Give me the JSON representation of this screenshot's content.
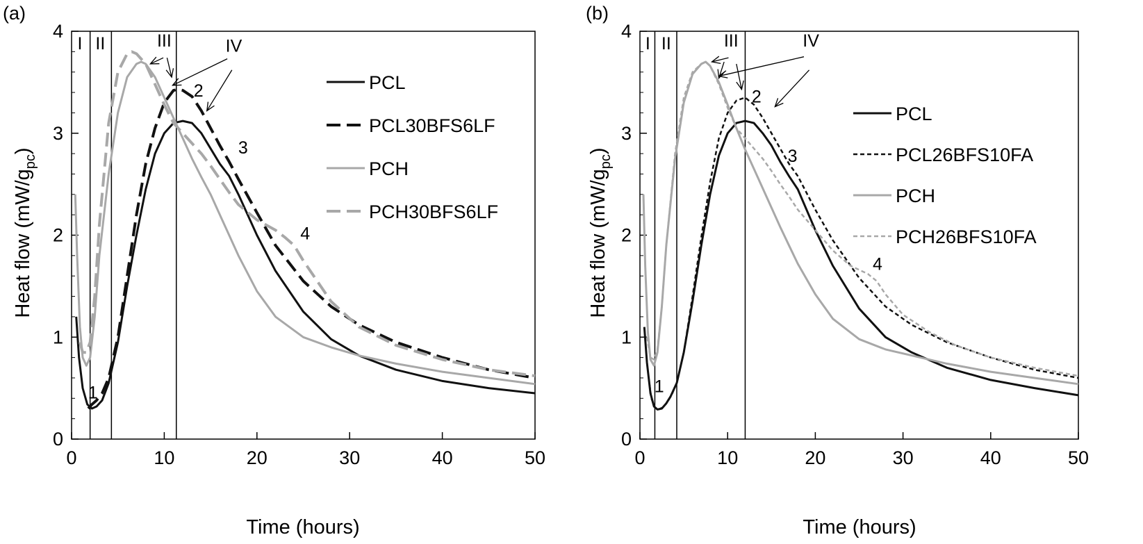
{
  "chart_data": [
    {
      "type": "line",
      "panel_label": "(a)",
      "xlabel": "Time (hours)",
      "ylabel": "Heat flow (mW/g",
      "ylabel_sub": "pc",
      "ylabel_close": ")",
      "xlim": [
        0,
        50
      ],
      "ylim": [
        0,
        4
      ],
      "xticks": [
        "0",
        "10",
        "20",
        "30",
        "40",
        "50"
      ],
      "yticks": [
        "0",
        "1",
        "2",
        "3",
        "4"
      ],
      "grid": false,
      "legend_position": "right",
      "region_lines_x": [
        2.0,
        4.3,
        11.3
      ],
      "region_labels": [
        {
          "text": "I",
          "x": 0.9
        },
        {
          "text": "II",
          "x": 3.1
        }
      ],
      "big_labels": [
        {
          "text": "III",
          "x": 10.0,
          "y": 3.85
        },
        {
          "text": "IV",
          "x": 17.5,
          "y": 3.8
        }
      ],
      "arrows": [
        {
          "from": [
            9.9,
            3.74
          ],
          "to": [
            8.5,
            3.68
          ]
        },
        {
          "from": [
            10.3,
            3.74
          ],
          "to": [
            10.8,
            3.55
          ]
        },
        {
          "from": [
            16.8,
            3.73
          ],
          "to": [
            10.9,
            3.47
          ]
        },
        {
          "from": [
            17.3,
            3.62
          ],
          "to": [
            14.6,
            3.22
          ]
        }
      ],
      "point_labels": [
        {
          "text": "1",
          "x": 2.3,
          "y": 0.4
        },
        {
          "text": "2",
          "x": 13.7,
          "y": 3.36
        },
        {
          "text": "3",
          "x": 18.5,
          "y": 2.8
        },
        {
          "text": "4",
          "x": 25.2,
          "y": 1.96
        }
      ],
      "series": [
        {
          "name": "PCL",
          "color": "#111111",
          "style": "solid",
          "x": [
            0.5,
            0.8,
            1.2,
            1.7,
            2.2,
            2.7,
            3.3,
            4.0,
            5.0,
            6.0,
            7.0,
            8.0,
            9.0,
            10.0,
            11.0,
            12.0,
            13.0,
            14.0,
            15.0,
            16.0,
            17.0,
            18.0,
            20.0,
            22.0,
            25.0,
            28.0,
            31.0,
            35.0,
            40.0,
            45.0,
            50.0
          ],
          "y": [
            1.2,
            0.8,
            0.5,
            0.34,
            0.3,
            0.32,
            0.38,
            0.55,
            0.95,
            1.5,
            2.0,
            2.45,
            2.8,
            3.0,
            3.1,
            3.12,
            3.1,
            3.0,
            2.85,
            2.7,
            2.58,
            2.4,
            2.0,
            1.65,
            1.25,
            0.98,
            0.82,
            0.68,
            0.57,
            0.5,
            0.45
          ]
        },
        {
          "name": "PCL30BFS6LF",
          "color": "#111111",
          "style": "dashed",
          "x": [
            1.8,
            2.2,
            2.7,
            3.3,
            4.0,
            5.0,
            6.0,
            7.0,
            8.0,
            9.0,
            10.0,
            11.0,
            11.5,
            12.0,
            13.0,
            14.0,
            15.0,
            16.0,
            17.0,
            18.0,
            20.0,
            22.0,
            25.0,
            28.0,
            31.0,
            35.0,
            40.0,
            45.0,
            50.0
          ],
          "y": [
            0.3,
            0.34,
            0.38,
            0.45,
            0.6,
            1.0,
            1.6,
            2.2,
            2.7,
            3.05,
            3.3,
            3.42,
            3.43,
            3.42,
            3.36,
            3.22,
            3.05,
            2.88,
            2.72,
            2.55,
            2.22,
            1.9,
            1.55,
            1.3,
            1.12,
            0.95,
            0.8,
            0.68,
            0.6
          ]
        },
        {
          "name": "PCH",
          "color": "#a8a8a8",
          "style": "solid",
          "x": [
            0.4,
            0.6,
            0.9,
            1.2,
            1.6,
            2.0,
            2.5,
            3.0,
            4.0,
            5.0,
            6.0,
            7.0,
            7.5,
            8.0,
            9.0,
            10.0,
            11.0,
            12.0,
            13.0,
            14.0,
            15.0,
            16.0,
            17.0,
            18.0,
            20.0,
            22.0,
            25.0,
            28.0,
            31.0,
            35.0,
            40.0,
            45.0,
            50.0
          ],
          "y": [
            2.4,
            1.8,
            1.1,
            0.8,
            0.72,
            0.8,
            1.2,
            1.8,
            2.6,
            3.2,
            3.55,
            3.68,
            3.7,
            3.68,
            3.55,
            3.35,
            3.15,
            2.95,
            2.75,
            2.57,
            2.4,
            2.2,
            2.0,
            1.8,
            1.45,
            1.2,
            1.0,
            0.9,
            0.82,
            0.74,
            0.66,
            0.6,
            0.54
          ]
        },
        {
          "name": "PCH30BFS6LF",
          "color": "#a8a8a8",
          "style": "dashed",
          "x": [
            0.9,
            1.2,
            1.6,
            2.0,
            2.5,
            3.0,
            4.0,
            5.0,
            6.0,
            6.5,
            7.0,
            8.0,
            9.0,
            10.0,
            11.0,
            12.0,
            13.0,
            14.0,
            15.0,
            16.0,
            17.0,
            18.0,
            20.0,
            22.0,
            23.0,
            24.0,
            25.0,
            28.0,
            31.0,
            35.0,
            40.0,
            45.0,
            50.0
          ],
          "y": [
            0.95,
            0.85,
            0.85,
            0.95,
            1.4,
            2.1,
            3.1,
            3.6,
            3.78,
            3.8,
            3.78,
            3.68,
            3.48,
            3.28,
            3.1,
            3.0,
            2.9,
            2.8,
            2.68,
            2.55,
            2.42,
            2.3,
            2.15,
            2.05,
            1.98,
            1.9,
            1.75,
            1.35,
            1.1,
            0.92,
            0.78,
            0.68,
            0.62
          ]
        }
      ]
    },
    {
      "type": "line",
      "panel_label": "(b)",
      "xlabel": "Time (hours)",
      "ylabel": "Heat flow (mW/g",
      "ylabel_sub": "pc",
      "ylabel_close": ")",
      "xlim": [
        0,
        50
      ],
      "ylim": [
        0,
        4
      ],
      "xticks": [
        "0",
        "10",
        "20",
        "30",
        "40",
        "50"
      ],
      "yticks": [
        "0",
        "1",
        "2",
        "3",
        "4"
      ],
      "grid": false,
      "legend_position": "right",
      "region_lines_x": [
        1.7,
        4.2,
        12.0
      ],
      "region_labels": [
        {
          "text": "I",
          "x": 0.9
        },
        {
          "text": "II",
          "x": 3.0
        }
      ],
      "big_labels": [
        {
          "text": "III",
          "x": 10.4,
          "y": 3.85
        },
        {
          "text": "IV",
          "x": 19.5,
          "y": 3.85
        }
      ],
      "arrows": [
        {
          "from": [
            10.1,
            3.74
          ],
          "to": [
            8.2,
            3.7
          ]
        },
        {
          "from": [
            9.6,
            3.7
          ],
          "to": [
            9.0,
            3.54
          ]
        },
        {
          "from": [
            11.0,
            3.68
          ],
          "to": [
            11.6,
            3.43
          ]
        },
        {
          "from": [
            18.7,
            3.75
          ],
          "to": [
            9.0,
            3.56
          ]
        },
        {
          "from": [
            19.3,
            3.62
          ],
          "to": [
            15.4,
            3.26
          ]
        }
      ],
      "point_labels": [
        {
          "text": "1",
          "x": 2.2,
          "y": 0.46
        },
        {
          "text": "2",
          "x": 13.3,
          "y": 3.3
        },
        {
          "text": "3",
          "x": 17.4,
          "y": 2.72
        },
        {
          "text": "4",
          "x": 27.1,
          "y": 1.66
        }
      ],
      "series": [
        {
          "name": "PCL",
          "color": "#111111",
          "style": "solid",
          "x": [
            0.5,
            0.8,
            1.2,
            1.6,
            2.0,
            2.5,
            3.0,
            3.5,
            4.2,
            5.0,
            6.0,
            7.0,
            8.0,
            9.0,
            10.0,
            11.0,
            12.0,
            13.0,
            14.0,
            15.0,
            16.0,
            17.0,
            18.0,
            20.0,
            22.0,
            25.0,
            28.0,
            31.0,
            35.0,
            40.0,
            45.0,
            50.0
          ],
          "y": [
            1.1,
            0.75,
            0.45,
            0.32,
            0.29,
            0.3,
            0.35,
            0.42,
            0.55,
            0.85,
            1.35,
            1.9,
            2.4,
            2.78,
            3.0,
            3.1,
            3.12,
            3.1,
            3.0,
            2.88,
            2.72,
            2.58,
            2.45,
            2.05,
            1.7,
            1.28,
            1.0,
            0.85,
            0.7,
            0.58,
            0.5,
            0.43
          ]
        },
        {
          "name": "PCL26BFS10FA",
          "color": "#111111",
          "style": "dotted",
          "x": [
            1.0,
            1.3,
            1.7,
            2.1,
            2.6,
            3.1,
            3.6,
            4.2,
            5.0,
            6.0,
            7.0,
            8.0,
            9.0,
            10.0,
            11.0,
            12.0,
            13.0,
            14.0,
            15.0,
            16.0,
            17.0,
            18.0,
            20.0,
            22.0,
            25.0,
            28.0,
            31.0,
            35.0,
            40.0,
            45.0,
            50.0
          ],
          "y": [
            0.6,
            0.4,
            0.31,
            0.29,
            0.31,
            0.36,
            0.43,
            0.55,
            0.85,
            1.4,
            1.98,
            2.52,
            2.95,
            3.2,
            3.32,
            3.35,
            3.28,
            3.15,
            3.0,
            2.85,
            2.7,
            2.58,
            2.25,
            1.95,
            1.58,
            1.3,
            1.12,
            0.95,
            0.8,
            0.68,
            0.6
          ]
        },
        {
          "name": "PCH",
          "color": "#a8a8a8",
          "style": "solid",
          "x": [
            0.4,
            0.6,
            0.9,
            1.2,
            1.6,
            2.0,
            2.5,
            3.0,
            4.0,
            5.0,
            6.0,
            7.0,
            7.5,
            8.0,
            9.0,
            10.0,
            11.0,
            12.0,
            13.0,
            14.0,
            15.0,
            16.0,
            17.0,
            18.0,
            20.0,
            22.0,
            25.0,
            28.0,
            31.0,
            35.0,
            40.0,
            45.0,
            50.0
          ],
          "y": [
            2.4,
            1.7,
            1.05,
            0.78,
            0.72,
            0.85,
            1.3,
            1.9,
            2.75,
            3.3,
            3.58,
            3.68,
            3.7,
            3.66,
            3.5,
            3.28,
            3.05,
            2.84,
            2.65,
            2.46,
            2.27,
            2.08,
            1.9,
            1.72,
            1.42,
            1.18,
            0.98,
            0.88,
            0.82,
            0.74,
            0.66,
            0.6,
            0.54
          ]
        },
        {
          "name": "PCH26BFS10FA",
          "color": "#a8a8a8",
          "style": "dotted",
          "x": [
            0.8,
            1.2,
            1.6,
            2.0,
            2.5,
            3.0,
            4.0,
            5.0,
            6.0,
            7.0,
            7.5,
            8.0,
            9.0,
            10.0,
            11.0,
            12.0,
            13.0,
            14.0,
            15.0,
            16.0,
            17.0,
            18.0,
            20.0,
            22.0,
            24.0,
            26.0,
            27.0,
            28.0,
            30.0,
            33.0,
            36.0,
            40.0,
            45.0,
            50.0
          ],
          "y": [
            1.0,
            0.8,
            0.78,
            0.88,
            1.3,
            1.9,
            2.8,
            3.35,
            3.6,
            3.68,
            3.7,
            3.66,
            3.48,
            3.25,
            3.05,
            2.95,
            2.85,
            2.75,
            2.63,
            2.5,
            2.38,
            2.25,
            2.05,
            1.85,
            1.7,
            1.62,
            1.55,
            1.42,
            1.22,
            1.05,
            0.92,
            0.8,
            0.7,
            0.62
          ]
        }
      ]
    }
  ]
}
